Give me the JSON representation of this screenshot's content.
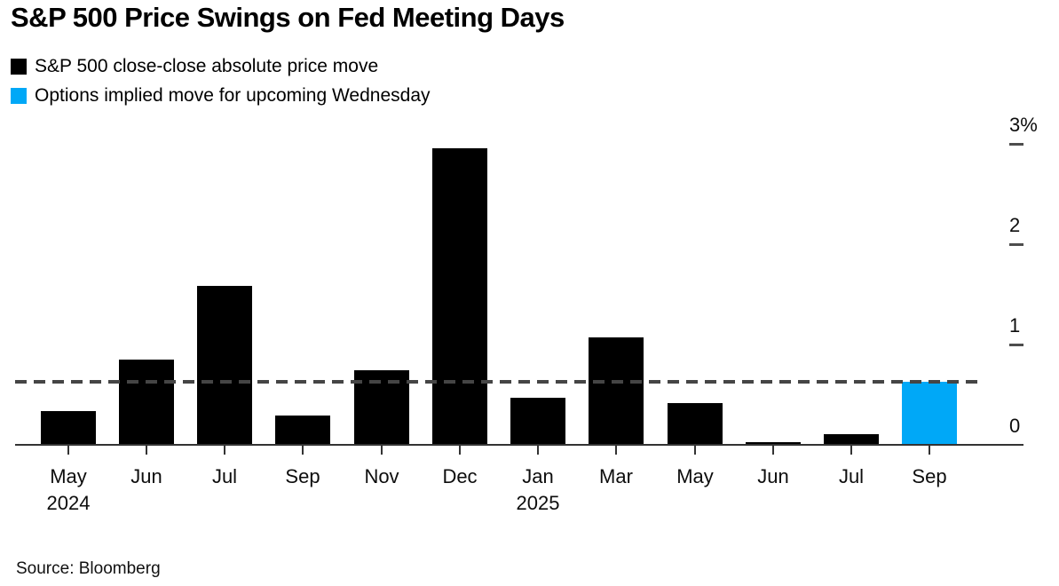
{
  "chart": {
    "title": "S&P 500 Price Swings on Fed Meeting Days",
    "source": "Source: Bloomberg"
  },
  "legend": {
    "items": [
      {
        "label": "S&P 500 close-close absolute price move",
        "color": "#000000"
      },
      {
        "label": "Options implied move for upcoming Wednesday",
        "color": "#00a8f7"
      }
    ]
  },
  "chart_data": {
    "type": "bar",
    "title": "S&P 500 Price Swings on Fed Meeting Days",
    "unit": "percent",
    "categories": [
      "May",
      "Jun",
      "Jul",
      "Sep",
      "Nov",
      "Dec",
      "Jan",
      "Mar",
      "May",
      "Jun",
      "Jul",
      "Sep"
    ],
    "year_markers": [
      {
        "index": 0,
        "label": "2024"
      },
      {
        "index": 6,
        "label": "2025"
      }
    ],
    "series": [
      {
        "name": "S&P 500 close-close absolute price move",
        "color": "#000000",
        "values": [
          0.34,
          0.85,
          1.58,
          0.29,
          0.74,
          2.96,
          0.47,
          1.07,
          0.42,
          0.03,
          0.11,
          null
        ]
      },
      {
        "name": "Options implied move for upcoming Wednesday",
        "color": "#00a8f7",
        "values": [
          null,
          null,
          null,
          null,
          null,
          null,
          null,
          null,
          null,
          null,
          null,
          0.63
        ]
      }
    ],
    "reference_line": {
      "value": 0.63,
      "style": "dashed",
      "color": "#454545"
    },
    "y_axis": {
      "side": "right",
      "range": [
        0,
        3
      ],
      "grid": false,
      "ticks": [
        {
          "value": 3,
          "label": "3%"
        },
        {
          "value": 2,
          "label": "2"
        },
        {
          "value": 1,
          "label": "1"
        },
        {
          "value": 0,
          "label": "0"
        }
      ]
    },
    "legend_position": "top-left",
    "source": "Source: Bloomberg"
  }
}
